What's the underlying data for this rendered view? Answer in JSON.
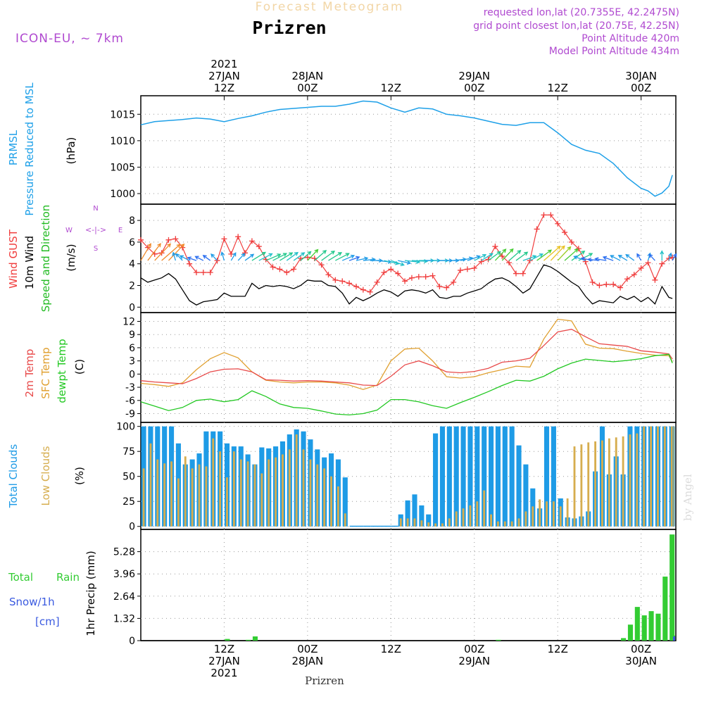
{
  "header": {
    "title_faded": "Forecast Meteogram",
    "location": "Prizren",
    "model": "ICON-EU, ~ 7km",
    "requested": "requested lon,lat (20.7355E, 42.2475N)",
    "grid_point": "grid point closest lon,lat (20.75E, 42.25N)",
    "point_altitude": "Point Altitude 420m",
    "model_altitude": "Model Point Altitude 434m",
    "watermark": "by Angel",
    "footer_location": "Prizren"
  },
  "colors": {
    "pressure": "#1ea0e8",
    "gust": "#f03c3c",
    "wind": "#000000",
    "dir": "#22bb22",
    "temp2m": "#e84a4a",
    "sfc": "#e0a030",
    "dewpt": "#22c822",
    "total_clouds": "#1e9be6",
    "low_clouds": "#d6ad4e",
    "rain": "#33cc33",
    "snow": "#3a5ae0",
    "label_purple": "#b04ad0"
  },
  "time_axis": {
    "top_labels": [
      {
        "hour": 12,
        "lines": [
          "2021",
          "27JAN",
          "12Z"
        ]
      },
      {
        "hour": 24,
        "lines": [
          "28JAN",
          "00Z"
        ]
      },
      {
        "hour": 36,
        "lines": [
          "12Z"
        ]
      },
      {
        "hour": 48,
        "lines": [
          "29JAN",
          "00Z"
        ]
      },
      {
        "hour": 60,
        "lines": [
          "12Z"
        ]
      },
      {
        "hour": 72,
        "lines": [
          "30JAN",
          "00Z"
        ]
      }
    ],
    "bottom_labels": [
      {
        "hour": 12,
        "lines": [
          "12Z",
          "27JAN",
          "2021"
        ]
      },
      {
        "hour": 24,
        "lines": [
          "00Z",
          "28JAN"
        ]
      },
      {
        "hour": 36,
        "lines": [
          "12Z"
        ]
      },
      {
        "hour": 48,
        "lines": [
          "00Z",
          "29JAN"
        ]
      },
      {
        "hour": 60,
        "lines": [
          "12Z"
        ]
      },
      {
        "hour": 72,
        "lines": [
          "00Z",
          "30JAN"
        ]
      }
    ]
  },
  "panel_labels": {
    "pressure": [
      "PRMSL",
      "Pressure Reduced to MSL",
      "(hPa)"
    ],
    "wind": [
      "Wind GUST",
      "10m Wind",
      "Speed and Direction",
      "(m/s)"
    ],
    "compass": [
      "N",
      "S",
      "W",
      "E",
      "<-|->"
    ],
    "temp": [
      "2m Temp",
      "SFC Temp",
      "dewpt Temp",
      "(C)"
    ],
    "clouds": [
      "Total Clouds",
      "Low Clouds",
      "(%)"
    ],
    "precip": [
      "Total",
      "Rain",
      "Snow/1h",
      "[cm]",
      "1hr Precip (mm)"
    ]
  },
  "chart_data": [
    {
      "type": "line",
      "title": "PRMSL Pressure Reduced to MSL",
      "ylabel": "(hPa)",
      "ylim": [
        998,
        1018.5
      ],
      "yticks": [
        "1000",
        "1005",
        "1010",
        "1015"
      ],
      "x_hours": [
        0,
        2,
        4,
        6,
        8,
        10,
        12,
        14,
        16,
        18,
        20,
        22,
        24,
        26,
        28,
        30,
        32,
        34,
        36,
        38,
        40,
        42,
        44,
        46,
        48,
        50,
        52,
        54,
        56,
        58,
        60,
        62,
        64,
        66,
        68,
        70,
        72,
        73,
        74,
        75,
        76,
        76.5
      ],
      "series": [
        {
          "name": "PRMSL",
          "values": [
            1013,
            1013.6,
            1013.8,
            1014,
            1014.3,
            1014.1,
            1013.6,
            1014.2,
            1014.7,
            1015.4,
            1015.9,
            1016.1,
            1016.3,
            1016.5,
            1016.5,
            1016.9,
            1017.5,
            1017.3,
            1016.2,
            1015.4,
            1016.2,
            1016.0,
            1015.0,
            1014.7,
            1014.3,
            1013.7,
            1013.1,
            1012.9,
            1013.4,
            1013.4,
            1011.5,
            1009.3,
            1008.2,
            1007.6,
            1005.7,
            1003.0,
            1001.0,
            1000.5,
            999.5,
            1000.1,
            1001.4,
            1003.5
          ]
        }
      ]
    },
    {
      "type": "line",
      "title": "Wind GUST / 10m Wind Speed and Direction",
      "ylabel": "(m/s)",
      "ylim": [
        -0.5,
        9.5
      ],
      "yticks": [
        "0",
        "2",
        "4",
        "6",
        "8"
      ],
      "x_hours": [
        0,
        1,
        2,
        3,
        4,
        5,
        6,
        7,
        8,
        9,
        10,
        11,
        12,
        13,
        14,
        15,
        16,
        17,
        18,
        19,
        20,
        21,
        22,
        23,
        24,
        25,
        26,
        27,
        28,
        29,
        30,
        31,
        32,
        33,
        34,
        35,
        36,
        37,
        38,
        39,
        40,
        41,
        42,
        43,
        44,
        45,
        46,
        47,
        48,
        49,
        50,
        51,
        52,
        53,
        54,
        55,
        56,
        57,
        58,
        59,
        60,
        61,
        62,
        63,
        64,
        65,
        66,
        67,
        68,
        69,
        70,
        71,
        72,
        73,
        74,
        75,
        76,
        76.5
      ],
      "series": [
        {
          "name": "Wind GUST",
          "values": [
            6.2,
            5.5,
            4.9,
            5.0,
            6.2,
            6.3,
            5.5,
            4.0,
            3.2,
            3.2,
            3.2,
            4.3,
            6.3,
            4.9,
            6.5,
            5.0,
            6.1,
            5.6,
            4.4,
            3.7,
            3.5,
            3.2,
            3.5,
            4.5,
            4.6,
            4.5,
            3.9,
            3.0,
            2.5,
            2.4,
            2.2,
            1.9,
            1.6,
            1.4,
            2.3,
            3.2,
            3.5,
            3.1,
            2.4,
            2.7,
            2.8,
            2.8,
            2.9,
            1.9,
            1.8,
            2.3,
            3.4,
            3.5,
            3.6,
            4.2,
            4.4,
            5.6,
            4.7,
            4.1,
            3.1,
            3.1,
            4.3,
            7.2,
            8.5,
            8.5,
            7.7,
            6.9,
            6.0,
            5.4,
            4.2,
            2.3,
            2.0,
            2.1,
            2.1,
            1.8,
            2.6,
            3.0,
            3.6,
            4.1,
            2.5,
            4.0,
            4.5,
            4.6
          ]
        },
        {
          "name": "10m Wind",
          "values": [
            2.7,
            2.3,
            2.5,
            2.7,
            3.1,
            2.6,
            1.6,
            0.6,
            0.2,
            0.5,
            0.6,
            0.7,
            1.3,
            1.0,
            1.0,
            1.0,
            2.2,
            1.7,
            2.0,
            1.9,
            2.0,
            1.9,
            1.7,
            2.0,
            2.5,
            2.4,
            2.4,
            2.0,
            1.9,
            1.3,
            0.3,
            0.9,
            0.6,
            0.9,
            1.3,
            1.6,
            1.4,
            1.0,
            1.5,
            1.6,
            1.5,
            1.3,
            1.6,
            0.9,
            0.8,
            1.0,
            1.0,
            1.3,
            1.5,
            1.7,
            2.2,
            2.6,
            2.7,
            2.4,
            1.9,
            1.3,
            1.7,
            2.8,
            3.9,
            3.7,
            3.3,
            2.8,
            2.3,
            1.9,
            1.0,
            0.3,
            0.6,
            0.5,
            0.4,
            1.0,
            0.7,
            1.0,
            0.5,
            0.9,
            0.3,
            1.9,
            0.9,
            0.8
          ]
        }
      ],
      "wind_dirs_deg": [
        20,
        25,
        30,
        35,
        30,
        350,
        330,
        310,
        300,
        310,
        320,
        330,
        350,
        20,
        30,
        40,
        45,
        50,
        55,
        50,
        45,
        40,
        40,
        35,
        30,
        35,
        40,
        45,
        50,
        55,
        60,
        70,
        80,
        90,
        100,
        110,
        120,
        110,
        100,
        95,
        90,
        90,
        90,
        90,
        90,
        80,
        70,
        60,
        50,
        45,
        40,
        30,
        30,
        35,
        40,
        60,
        50,
        40,
        35,
        30,
        30,
        35,
        40,
        50,
        300,
        290,
        280,
        285,
        300,
        310,
        315,
        320,
        340,
        10,
        330,
        0,
        10,
        20
      ],
      "wind_dir_speeds": [
        4.0,
        4.2,
        4.4,
        4.5,
        4.3,
        1.2,
        1.1,
        1.0,
        0.6,
        0.7,
        0.8,
        1.0,
        1.3,
        1.2,
        1.2,
        1.2,
        2.2,
        1.9,
        2.0,
        2.0,
        2.0,
        1.9,
        1.8,
        2.0,
        2.5,
        2.4,
        2.4,
        2.1,
        2.0,
        1.4,
        0.9,
        1.0,
        1.0,
        1.0,
        1.4,
        1.6,
        1.5,
        1.2,
        1.5,
        1.6,
        1.5,
        1.4,
        1.6,
        1.1,
        1.0,
        1.1,
        1.1,
        1.4,
        1.5,
        1.7,
        2.2,
        2.6,
        2.7,
        2.4,
        2.0,
        1.5,
        1.8,
        2.8,
        3.9,
        3.7,
        3.4,
        2.9,
        2.4,
        2.0,
        1.2,
        0.9,
        0.9,
        0.9,
        0.9,
        1.1,
        1.0,
        1.1,
        0.9,
        1.0,
        0.9,
        1.6,
        1.0,
        0.9
      ]
    },
    {
      "type": "line",
      "title": "2m Temp / SFC Temp / dewpt Temp",
      "ylabel": "(C)",
      "ylim": [
        -11,
        14
      ],
      "yticks": [
        "-9",
        "-6",
        "-3",
        "0",
        "3",
        "6",
        "9",
        "12"
      ],
      "x_hours": [
        0,
        2,
        4,
        6,
        8,
        10,
        12,
        14,
        16,
        18,
        20,
        22,
        24,
        26,
        28,
        30,
        32,
        34,
        36,
        38,
        40,
        42,
        44,
        46,
        48,
        50,
        52,
        54,
        56,
        58,
        60,
        62,
        64,
        66,
        68,
        70,
        72,
        74,
        76,
        76.5
      ],
      "series": [
        {
          "name": "2m Temp",
          "values": [
            -1.5,
            -1.8,
            -2.0,
            -2.2,
            -1.0,
            0.5,
            1.1,
            1.2,
            0.5,
            -1.3,
            -1.4,
            -1.6,
            -1.5,
            -1.6,
            -1.8,
            -2.0,
            -2.5,
            -2.6,
            -0.5,
            2.1,
            3.0,
            1.9,
            0.5,
            0.3,
            0.6,
            1.3,
            2.7,
            3.0,
            3.6,
            6.5,
            9.6,
            10.2,
            8.5,
            6.9,
            6.6,
            6.3,
            5.3,
            5.0,
            4.6,
            3.4
          ]
        },
        {
          "name": "SFC Temp",
          "values": [
            -2.1,
            -2.4,
            -2.8,
            -2.0,
            1.0,
            3.5,
            4.9,
            3.7,
            0.5,
            -1.4,
            -1.8,
            -2.0,
            -1.8,
            -1.8,
            -2.0,
            -2.5,
            -3.5,
            -2.5,
            3.0,
            5.7,
            5.9,
            3.0,
            -0.6,
            -0.9,
            -0.6,
            0.3,
            1.0,
            1.8,
            1.6,
            8.0,
            12.5,
            12.1,
            6.8,
            5.9,
            5.8,
            5.2,
            4.7,
            4.3,
            4.2,
            2.8
          ]
        },
        {
          "name": "dewpt Temp",
          "values": [
            -6.3,
            -7.3,
            -8.3,
            -7.6,
            -6.0,
            -5.7,
            -6.3,
            -5.8,
            -3.8,
            -5.1,
            -6.8,
            -7.6,
            -7.8,
            -8.4,
            -9.1,
            -9.3,
            -9.0,
            -8.2,
            -5.8,
            -5.8,
            -6.3,
            -7.2,
            -7.8,
            -6.5,
            -5.3,
            -4.0,
            -2.6,
            -1.4,
            -1.6,
            -0.5,
            1.2,
            2.5,
            3.4,
            3.1,
            2.8,
            3.1,
            3.5,
            4.2,
            4.5,
            2.5
          ]
        }
      ]
    },
    {
      "type": "bar",
      "title": "Total Clouds / Low Clouds",
      "ylabel": "(%)",
      "ylim": [
        -3,
        104
      ],
      "yticks": [
        "0",
        "25",
        "50",
        "75",
        "100"
      ],
      "x_hours": [
        0,
        1,
        2,
        3,
        4,
        5,
        6,
        7,
        8,
        9,
        10,
        11,
        12,
        13,
        14,
        15,
        16,
        17,
        18,
        19,
        20,
        21,
        22,
        23,
        24,
        25,
        26,
        27,
        28,
        29,
        30,
        31,
        32,
        33,
        34,
        35,
        36,
        37,
        38,
        39,
        40,
        41,
        42,
        43,
        44,
        45,
        46,
        47,
        48,
        49,
        50,
        51,
        52,
        53,
        54,
        55,
        56,
        57,
        58,
        59,
        60,
        61,
        62,
        63,
        64,
        65,
        66,
        67,
        68,
        69,
        70,
        71,
        72,
        73,
        74,
        75,
        76,
        76.5
      ],
      "series": [
        {
          "name": "Total Clouds",
          "values": [
            100,
            100,
            100,
            100,
            100,
            83,
            62,
            67,
            73,
            95,
            95,
            95,
            83,
            80,
            80,
            72,
            62,
            79,
            78,
            80,
            85,
            92,
            97,
            95,
            87,
            77,
            69,
            73,
            67,
            49,
            0,
            0,
            0,
            0,
            0,
            0,
            0,
            12,
            26,
            32,
            21,
            12,
            93,
            100,
            100,
            100,
            100,
            100,
            100,
            100,
            100,
            100,
            100,
            100,
            81,
            62,
            38,
            18,
            100,
            100,
            28,
            9,
            8,
            10,
            15,
            55,
            100,
            52,
            70,
            52,
            100,
            100,
            100,
            100,
            100,
            100,
            100,
            100
          ]
        },
        {
          "name": "Low Clouds",
          "values": [
            58,
            83,
            67,
            63,
            65,
            48,
            70,
            58,
            62,
            60,
            88,
            75,
            49,
            75,
            67,
            65,
            62,
            53,
            67,
            69,
            72,
            77,
            92,
            77,
            67,
            62,
            58,
            50,
            40,
            13,
            0,
            0,
            0,
            0,
            0,
            0,
            0,
            8,
            8,
            8,
            6,
            4,
            3,
            3,
            8,
            15,
            18,
            21,
            25,
            36,
            12,
            5,
            5,
            5,
            8,
            15,
            20,
            27,
            25,
            25,
            20,
            28,
            80,
            82,
            84,
            85,
            86,
            88,
            89,
            90,
            92,
            93,
            100,
            100,
            100,
            100,
            100,
            100
          ]
        }
      ]
    },
    {
      "type": "bar",
      "title": "1hr Precip (mm)",
      "ylabel": "1hr Precip (mm)",
      "ylim": [
        0,
        6.6
      ],
      "yticks": [
        "0",
        "1.32",
        "2.64",
        "3.96",
        "5.28"
      ],
      "x_hours": [
        12,
        15,
        16,
        51,
        69,
        70,
        71,
        72,
        73,
        74,
        75,
        76,
        76.5
      ],
      "series": [
        {
          "name": "Total Rain",
          "values": [
            0.1,
            0.05,
            0.25,
            0.05,
            0.15,
            0.95,
            2.0,
            1.5,
            1.75,
            1.6,
            3.8,
            6.3,
            0.3
          ]
        },
        {
          "name": "Snow/1h",
          "values": [
            0,
            0,
            0,
            0,
            0,
            0,
            0,
            0,
            0,
            0,
            0,
            0,
            0.25
          ]
        }
      ]
    }
  ]
}
